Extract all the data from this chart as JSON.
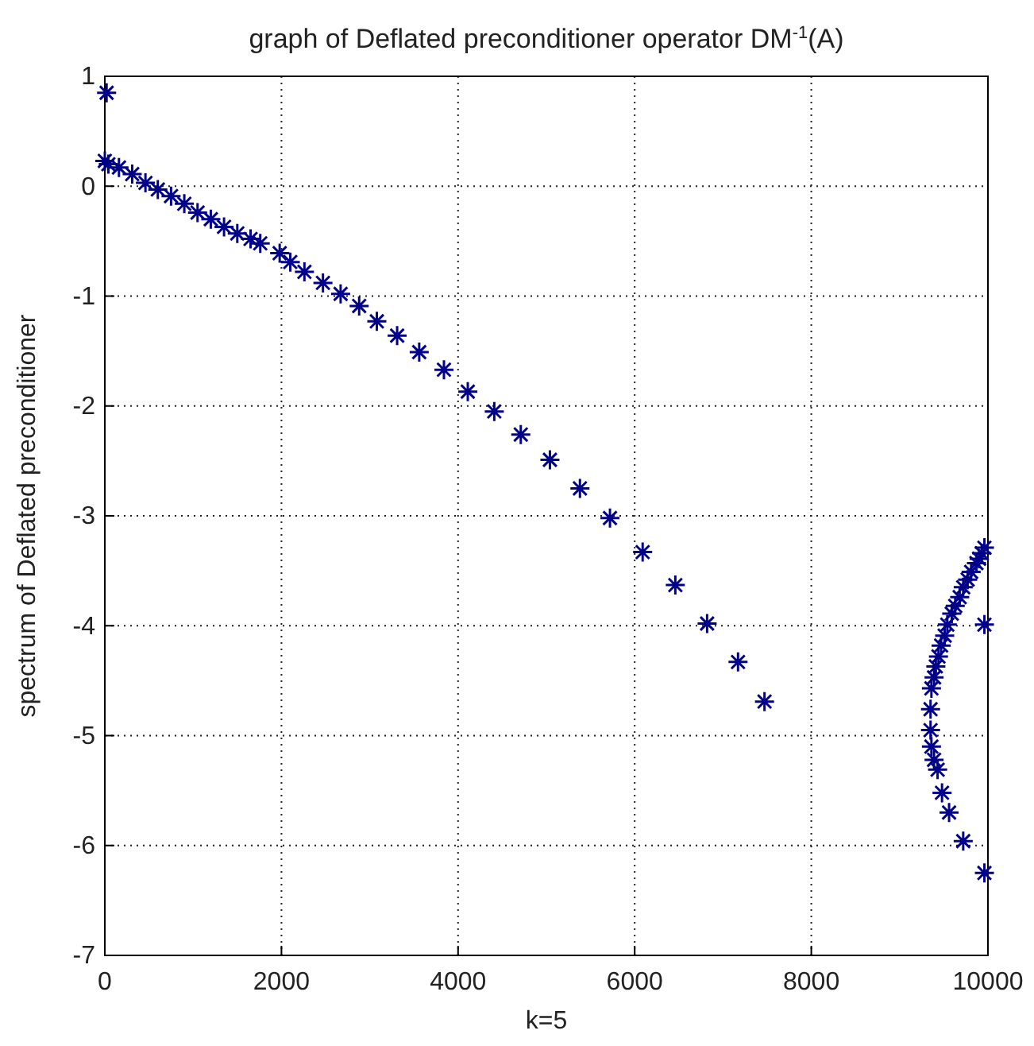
{
  "chart_data": {
    "type": "scatter",
    "title": "graph of Deflated preconditioner operator DM$^{-1}$(A)",
    "xlabel": "k=5",
    "ylabel": "spectrum of  Deflated  preconditioner",
    "xlim": [
      0,
      10000
    ],
    "xticks": [
      0,
      2000,
      4000,
      6000,
      8000,
      10000
    ],
    "ylim": [
      -7,
      1
    ],
    "yticks": [
      -7,
      -6,
      -5,
      -4,
      -3,
      -2,
      -1,
      0,
      1
    ],
    "grid": true,
    "marker": "cross",
    "series": [
      {
        "color": "#00008b",
        "x": [
          20,
          0,
          40,
          160,
          310,
          460,
          600,
          750,
          900,
          1050,
          1200,
          1350,
          1500,
          1650,
          1760,
          1980,
          2100,
          2260,
          2470,
          2670,
          2880,
          3080,
          3310,
          3560,
          3840,
          4110,
          4410,
          4710,
          5040,
          5380,
          5720,
          6090,
          6460,
          6820,
          7170,
          7470,
          9960,
          9930,
          9900,
          9870,
          9810,
          9770,
          9720,
          9680,
          9630,
          9590,
          9540,
          9510,
          9470,
          9440,
          9410,
          9390,
          9360,
          9350,
          9350,
          9360,
          9390,
          9430,
          9480,
          9560,
          9720,
          9960,
          9960
        ],
        "values": [
          0.85,
          0.23,
          0.2,
          0.17,
          0.11,
          0.03,
          -0.03,
          -0.09,
          -0.16,
          -0.24,
          -0.3,
          -0.37,
          -0.43,
          -0.48,
          -0.52,
          -0.61,
          -0.69,
          -0.78,
          -0.88,
          -0.98,
          -1.09,
          -1.23,
          -1.36,
          -1.51,
          -1.67,
          -1.87,
          -2.05,
          -2.26,
          -2.49,
          -2.75,
          -3.02,
          -3.33,
          -3.63,
          -3.98,
          -4.33,
          -4.69,
          -3.29,
          -3.34,
          -3.39,
          -3.43,
          -3.51,
          -3.58,
          -3.65,
          -3.74,
          -3.82,
          -3.89,
          -3.99,
          -4.09,
          -4.18,
          -4.28,
          -4.37,
          -4.47,
          -4.57,
          -4.76,
          -4.95,
          -5.1,
          -5.22,
          -5.31,
          -5.52,
          -5.7,
          -5.96,
          -6.25,
          -3.99
        ]
      }
    ]
  }
}
